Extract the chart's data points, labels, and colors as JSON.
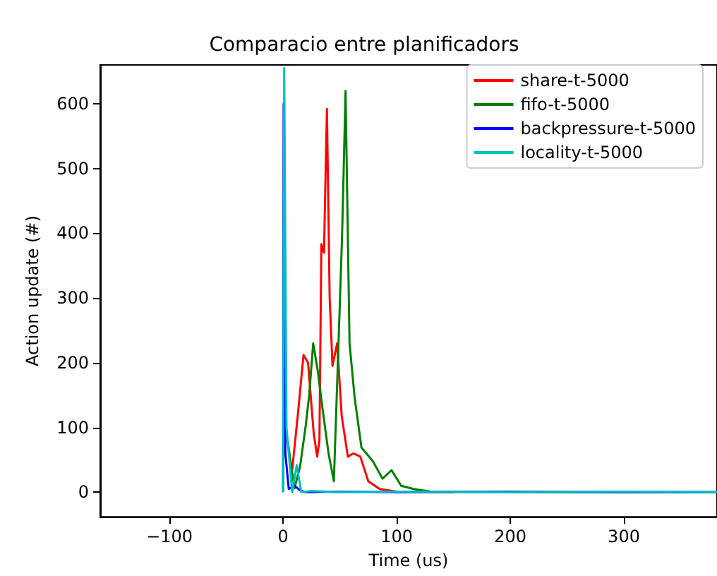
{
  "chart_data": {
    "type": "line",
    "title": "Comparacio entre planificadors",
    "xlabel": "Time (us)",
    "ylabel": "Action update (#)",
    "xlim": [
      -161,
      382
    ],
    "ylim": [
      -38,
      660
    ],
    "xticks": [
      -100,
      0,
      100,
      200,
      300
    ],
    "yticks": [
      0,
      100,
      200,
      300,
      400,
      500,
      600
    ],
    "legend": "top right",
    "grid": false,
    "series": [
      {
        "name": "share-t-5000",
        "color": "#ff0000",
        "x": [
          8,
          13,
          18,
          22,
          27,
          30,
          32,
          33.7,
          36,
          38.6,
          41,
          43.5,
          47.6,
          51.6,
          57,
          62,
          68,
          75,
          85,
          100,
          150
        ],
        "values": [
          34,
          120,
          212,
          200,
          90,
          55,
          80,
          383,
          370,
          592,
          300,
          195,
          230,
          118,
          55,
          60,
          55,
          17,
          5,
          1,
          0
        ]
      },
      {
        "name": "fifo-t-5000",
        "color": "#008000",
        "x": [
          4,
          10,
          15,
          20,
          23,
          26.5,
          30.5,
          34.5,
          40,
          44.7,
          48.8,
          52,
          55,
          58.5,
          63,
          69,
          79,
          87.5,
          95.5,
          104,
          115,
          130,
          250,
          382
        ],
        "values": [
          80,
          6,
          40,
          104,
          150,
          230,
          188,
          132,
          60,
          17,
          230,
          400,
          620,
          230,
          146,
          69,
          48,
          21,
          34,
          10,
          5,
          1,
          0,
          0
        ]
      },
      {
        "name": "backpressure-t-5000",
        "color": "#0000ff",
        "x": [
          0,
          0.5,
          2,
          5,
          10,
          15,
          20,
          40,
          100,
          200,
          300,
          382
        ],
        "values": [
          0,
          600,
          60,
          5,
          10,
          3,
          0,
          1,
          0,
          1,
          0,
          0
        ]
      },
      {
        "name": "locality-t-5000",
        "color": "#00bfbf",
        "x": [
          0,
          1,
          3,
          8,
          12,
          16,
          25,
          50,
          100,
          200,
          300,
          382
        ],
        "values": [
          0,
          655,
          100,
          0,
          42,
          0,
          2,
          0,
          1,
          0,
          1,
          0
        ]
      }
    ]
  }
}
